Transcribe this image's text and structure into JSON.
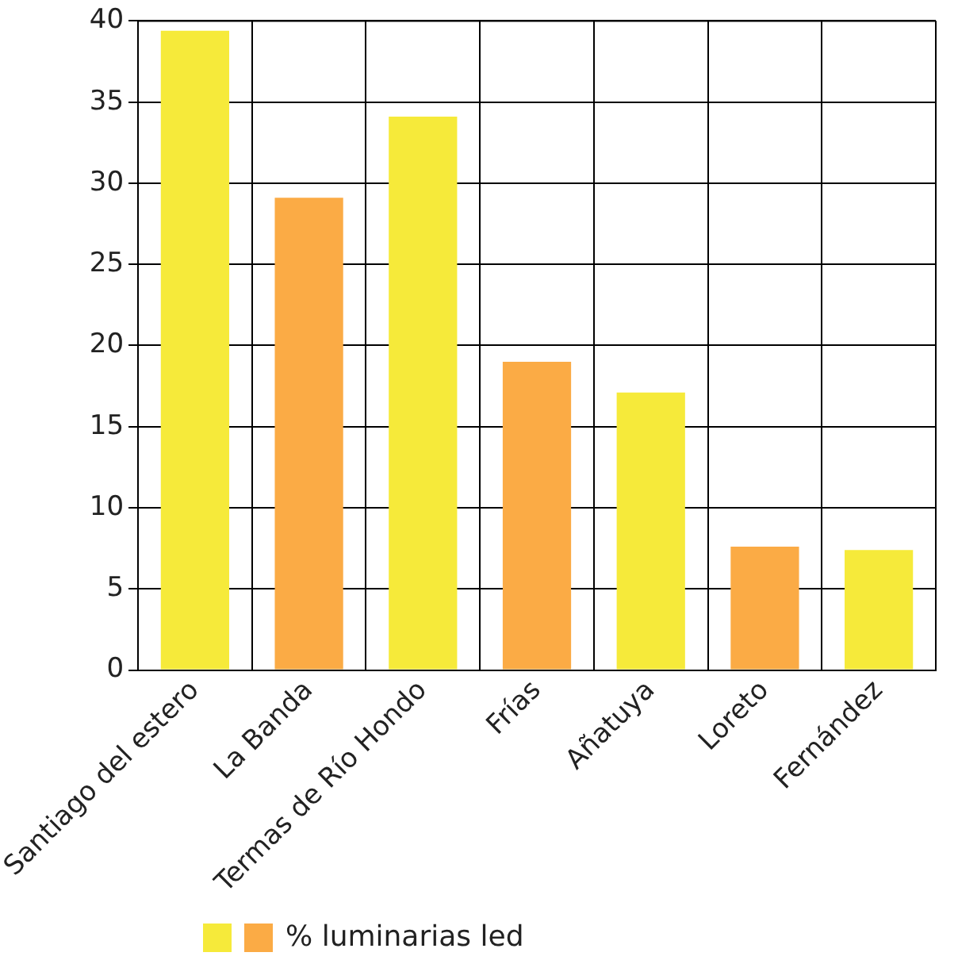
{
  "chart_data": {
    "type": "bar",
    "categories": [
      "Santiago del estero",
      "La Banda",
      "Termas de Río Hondo",
      "Frías",
      "Añatuya",
      "Loreto",
      "Fernández"
    ],
    "series": [
      {
        "name": "% luminarias led",
        "colors": [
          "#f6ea3a",
          "#fbab45",
          "#f6ea3a",
          "#fbab45",
          "#f6ea3a",
          "#fbab45",
          "#f6ea3a"
        ],
        "values": [
          39.4,
          29.1,
          34.1,
          19.0,
          17.1,
          7.6,
          7.4
        ]
      }
    ],
    "ylim": [
      0,
      40
    ],
    "yticks": [
      0,
      5,
      10,
      15,
      20,
      25,
      30,
      35,
      40
    ],
    "grid": true,
    "legend": "bottom"
  }
}
